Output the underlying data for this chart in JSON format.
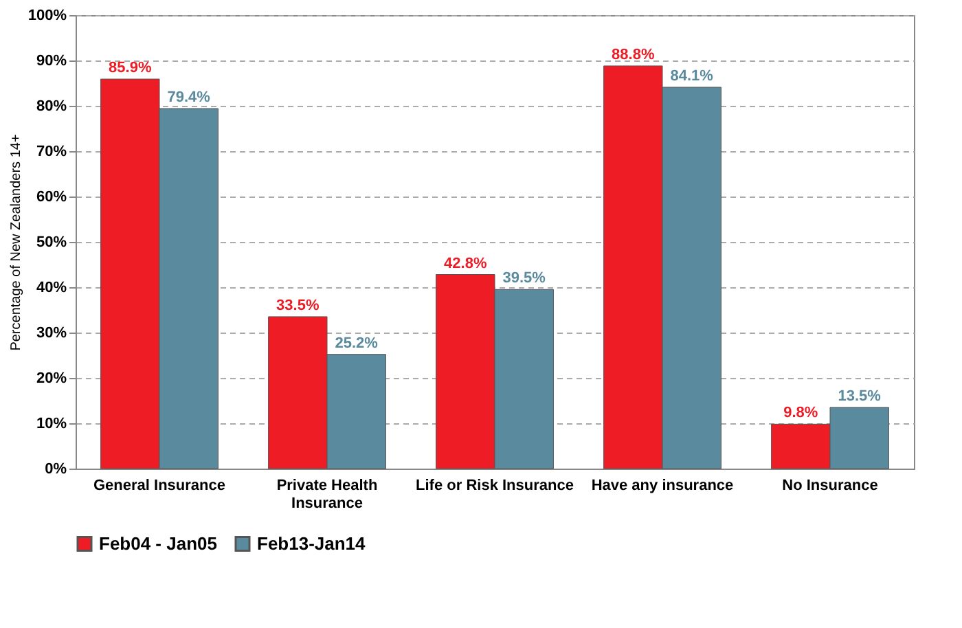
{
  "chart_data": {
    "type": "bar",
    "ylabel": "Percentage of New Zealanders 14+",
    "categories": [
      "General Insurance",
      "Private Health Insurance",
      "Life or Risk Insurance",
      "Have any insurance",
      "No Insurance"
    ],
    "series": [
      {
        "name": "Feb04 - Jan05",
        "color": "#ee1c25",
        "values": [
          85.9,
          33.5,
          42.8,
          88.8,
          9.8
        ],
        "value_labels": [
          "85.9%",
          "33.5%",
          "42.8%",
          "88.8%",
          "9.8%"
        ]
      },
      {
        "name": "Feb13-Jan14",
        "color": "#5a8a9e",
        "values": [
          79.4,
          25.2,
          39.5,
          84.1,
          13.5
        ],
        "value_labels": [
          "79.4%",
          "25.2%",
          "39.5%",
          "84.1%",
          "13.5%"
        ]
      }
    ],
    "ylim": [
      0,
      100
    ],
    "yticks": [
      {
        "value": 0,
        "label": "0%"
      },
      {
        "value": 10,
        "label": "10%"
      },
      {
        "value": 20,
        "label": "20%"
      },
      {
        "value": 30,
        "label": "30%"
      },
      {
        "value": 40,
        "label": "40%"
      },
      {
        "value": 50,
        "label": "50%"
      },
      {
        "value": 60,
        "label": "60%"
      },
      {
        "value": 70,
        "label": "70%"
      },
      {
        "value": 80,
        "label": "80%"
      },
      {
        "value": 90,
        "label": "90%"
      },
      {
        "value": 100,
        "label": "100%"
      }
    ],
    "grid": "y",
    "legend": "bottom"
  }
}
